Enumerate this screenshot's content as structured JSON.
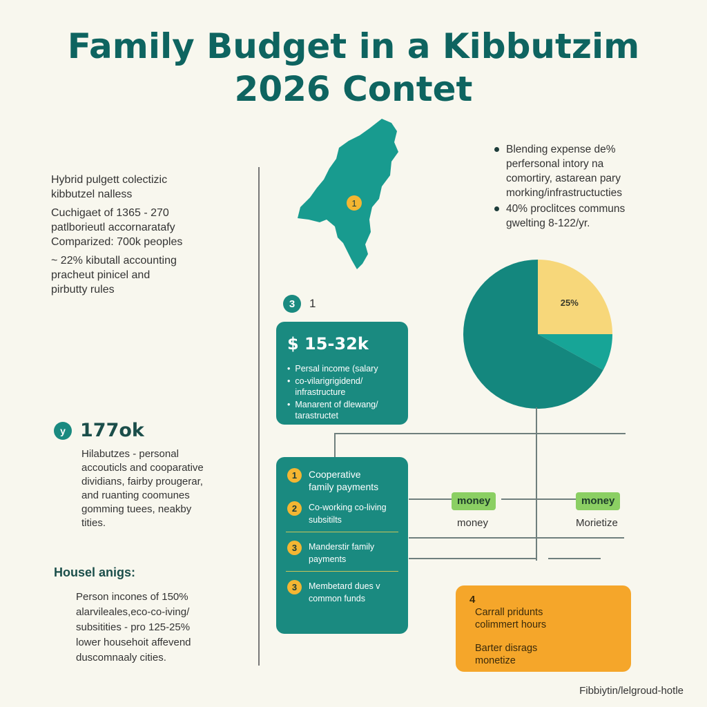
{
  "title": {
    "line1": "Family Budget in a Kibbutzim",
    "line2": "2026 Contet"
  },
  "left_intro": [
    "Hybrid pulgett colectizic",
    "kibbutzel nalless",
    "Cuchigaet of 1365 - 270",
    "patlborieutl accornaratafy",
    "Comparized: 700k peoples",
    "~ 22% kibutall accounting",
    "pracheut pinicel and",
    "pirbutty rules"
  ],
  "map": {
    "marker": "1"
  },
  "right_bullets": [
    {
      "lines": [
        "Blending expense de%",
        "perfersonal intory na",
        "comortiry, astarean pary",
        "morking/infrastructucties"
      ]
    },
    {
      "lines": [
        "40% proclitces communs",
        "gwelting 8-122/yr."
      ]
    }
  ],
  "step3": {
    "badge": "3",
    "number": "1"
  },
  "income_card": {
    "amount": "$ 15-32k",
    "bullets": [
      "Persal income (salary",
      "co-vilarigrigidend/ infrastructure",
      "Manarent of dlewang/ tarastructet"
    ]
  },
  "members": {
    "badge": "y",
    "value": "177ok",
    "lines": [
      "Hilabutzes - personal",
      "accouticls and cooparative",
      "dividians, fairby prougerar,",
      "and ruanting coomunes",
      "gomming tuees, neakby",
      "tities."
    ]
  },
  "household": {
    "heading": "Housel anigs:",
    "lines": [
      "Person incones of 150%",
      "alarvileales,eco-co-iving/",
      "subsitities - pro 125-25%",
      "lower househoit affevend",
      "duscomnaaly cities."
    ]
  },
  "pie": {
    "label": "25%",
    "colors": {
      "main": "#14877e",
      "yellow": "#f7d77a",
      "teal": "#17a597"
    }
  },
  "chart_data": {
    "type": "pie",
    "slices": [
      {
        "value": 25,
        "color": "#f7d77a"
      },
      {
        "value": 8,
        "color": "#17a597"
      },
      {
        "value": 67,
        "color": "#14877e"
      }
    ],
    "labels": [
      "25%"
    ]
  },
  "payments_card": [
    {
      "badge": "1",
      "text": [
        "Cooperative",
        "family payments"
      ]
    },
    {
      "badge": "2",
      "text": [
        "Co-working co-living",
        "subsitilts"
      ]
    },
    {
      "badge": "3",
      "text": [
        "Manderstir family",
        "payments"
      ]
    },
    {
      "badge": "3",
      "text": [
        "Membetard dues v",
        "common funds"
      ]
    }
  ],
  "flow": {
    "chip1": "money",
    "caption1": "money",
    "chip2": "money",
    "caption2": "Morietize"
  },
  "orange_card": {
    "number": "4",
    "lines1": [
      "Carrall pridunts",
      "colimmert hours"
    ],
    "lines2": [
      "Barter disrags",
      "monetize"
    ]
  },
  "footer": "Fibbiytin/lelgroud-hotle",
  "colors": {
    "title": "#0e6460",
    "card": "#1a8a80",
    "orange": "#f5a62a",
    "badge": "#f4b632",
    "chip": "#8bcf63"
  }
}
